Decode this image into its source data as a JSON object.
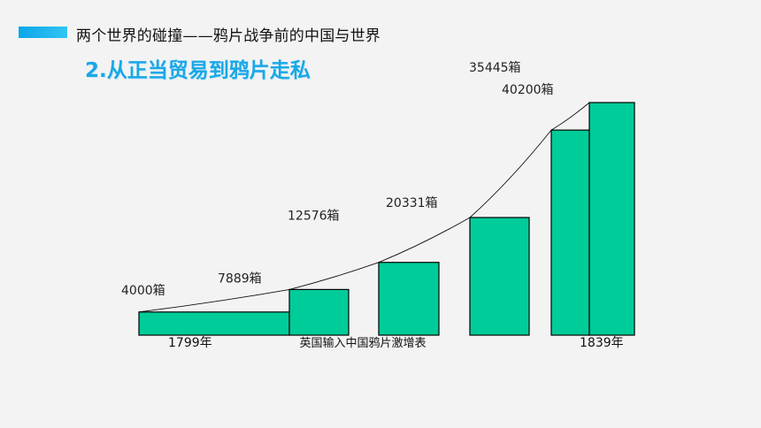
{
  "header": {
    "title": "两个世界的碰撞——鸦片战争前的中国与世界",
    "subtitle": "2.从正当贸易到鸦片走私"
  },
  "colors": {
    "accent": "#1aa7e6",
    "bar_fill": "#00cc99",
    "bar_stroke": "#000000"
  },
  "chart_data": {
    "type": "bar",
    "title": "英国输入中国鸦片激增表",
    "categories": [
      "1799年",
      "",
      "",
      "",
      "",
      "1839年"
    ],
    "x_axis_labels": [
      {
        "label": "1799年",
        "bar": 0
      },
      {
        "label": "1839年",
        "bar": 5
      }
    ],
    "values": [
      4000,
      7889,
      12576,
      20331,
      35445,
      40200
    ],
    "value_labels": [
      "4000箱",
      "7889箱",
      "12576箱",
      "20331箱",
      "35445箱",
      "40200箱"
    ],
    "unit": "箱",
    "trend_line": true,
    "grid": false,
    "legend": "none"
  }
}
